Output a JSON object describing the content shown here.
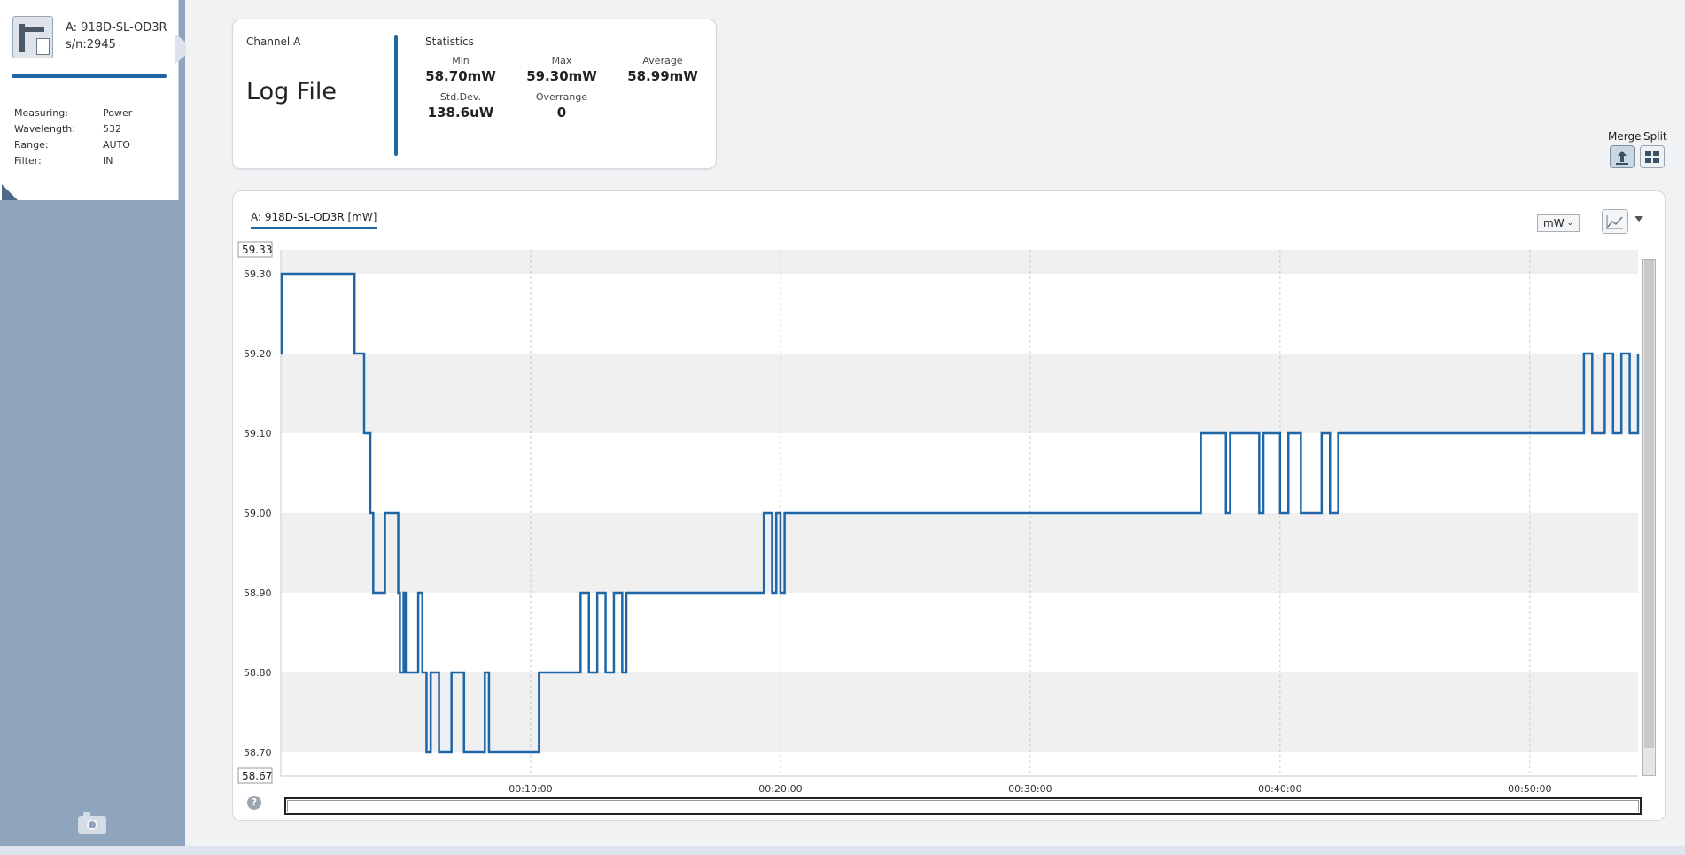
{
  "device": {
    "name_line1": "A: 918D-SL-OD3R",
    "name_line2": "s/n:2945",
    "details": [
      {
        "label": "Measuring:",
        "value": "Power"
      },
      {
        "label": "Wavelength:",
        "value": "532"
      },
      {
        "label": "Range:",
        "value": "AUTO"
      },
      {
        "label": "Filter:",
        "value": "IN"
      }
    ]
  },
  "stats": {
    "channel": "Channel A",
    "mode": "Log File",
    "title": "Statistics",
    "min_label": "Min",
    "min_value": "58.70mW",
    "max_label": "Max",
    "max_value": "59.30mW",
    "avg_label": "Average",
    "avg_value": "58.99mW",
    "std_label": "Std.Dev.",
    "std_value": "138.6uW",
    "over_label": "Overrange",
    "over_value": "0"
  },
  "view": {
    "merge_label": "Merge",
    "split_label": "Split"
  },
  "graph": {
    "legend": "A: 918D-SL-OD3R [mW]",
    "unit": "mW",
    "help": "?"
  },
  "colors": {
    "line": "#1f66a7",
    "accent": "#2065a4",
    "band": "#f1f0f0",
    "sidebar": "#8fa5bd"
  },
  "icons": [
    "device-icon",
    "camera-icon",
    "merge-icon",
    "split-icon",
    "line-chart-icon",
    "help-icon"
  ],
  "chart_data": {
    "type": "line",
    "title": "A: 918D-SL-OD3R [mW]",
    "xlabel": "",
    "ylabel": "",
    "ylim": [
      58.67,
      59.33
    ],
    "ylim_labels": [
      "59.33",
      "58.67"
    ],
    "yticks": [
      59.3,
      59.2,
      59.1,
      59.0,
      58.9,
      58.8,
      58.7
    ],
    "ytick_labels": [
      "59.30",
      "59.20",
      "59.10",
      "59.00",
      "58.90",
      "58.80",
      "58.70"
    ],
    "xlim_seconds": [
      0,
      3260
    ],
    "xticks_seconds": [
      600,
      1200,
      1800,
      2400,
      3000
    ],
    "xtick_labels": [
      "00:10:00",
      "00:20:00",
      "00:30:00",
      "00:40:00",
      "00:50:00"
    ],
    "grid": true,
    "series": [
      {
        "name": "A: 918D-SL-OD3R [mW]",
        "x": [
          0,
          2,
          175,
          177,
          195,
          200,
          210,
          215,
          220,
          222,
          250,
          280,
          282,
          285,
          286,
          290,
          295,
          300,
          320,
          330,
          340,
          350,
          355,
          360,
          375,
          380,
          400,
          410,
          420,
          440,
          460,
          480,
          490,
          500,
          600,
          620,
          640,
          660,
          700,
          720,
          740,
          760,
          780,
          800,
          820,
          830,
          850,
          860,
          900,
          1150,
          1160,
          1180,
          1190,
          1200,
          1210,
          1220,
          1240,
          2200,
          2210,
          2270,
          2280,
          2350,
          2360,
          2400,
          2420,
          2450,
          2500,
          2520,
          2540,
          2600,
          3120,
          3130,
          3150,
          3180,
          3200,
          3220,
          3240,
          3260
        ],
        "values": [
          59.2,
          59.3,
          59.3,
          59.2,
          59.2,
          59.1,
          59.1,
          59.0,
          59.0,
          58.9,
          59.0,
          59.0,
          58.9,
          58.9,
          58.8,
          58.8,
          58.9,
          58.8,
          58.8,
          58.9,
          58.8,
          58.7,
          58.7,
          58.8,
          58.8,
          58.7,
          58.7,
          58.8,
          58.8,
          58.7,
          58.7,
          58.7,
          58.8,
          58.7,
          58.7,
          58.8,
          58.8,
          58.8,
          58.8,
          58.9,
          58.8,
          58.9,
          58.8,
          58.9,
          58.8,
          58.9,
          58.9,
          58.9,
          58.9,
          58.9,
          59.0,
          58.9,
          59.0,
          58.9,
          59.0,
          59.0,
          59.0,
          59.0,
          59.1,
          59.0,
          59.1,
          59.0,
          59.1,
          59.0,
          59.1,
          59.0,
          59.1,
          59.0,
          59.1,
          59.1,
          59.1,
          59.2,
          59.1,
          59.2,
          59.1,
          59.2,
          59.1,
          59.2
        ]
      }
    ]
  }
}
